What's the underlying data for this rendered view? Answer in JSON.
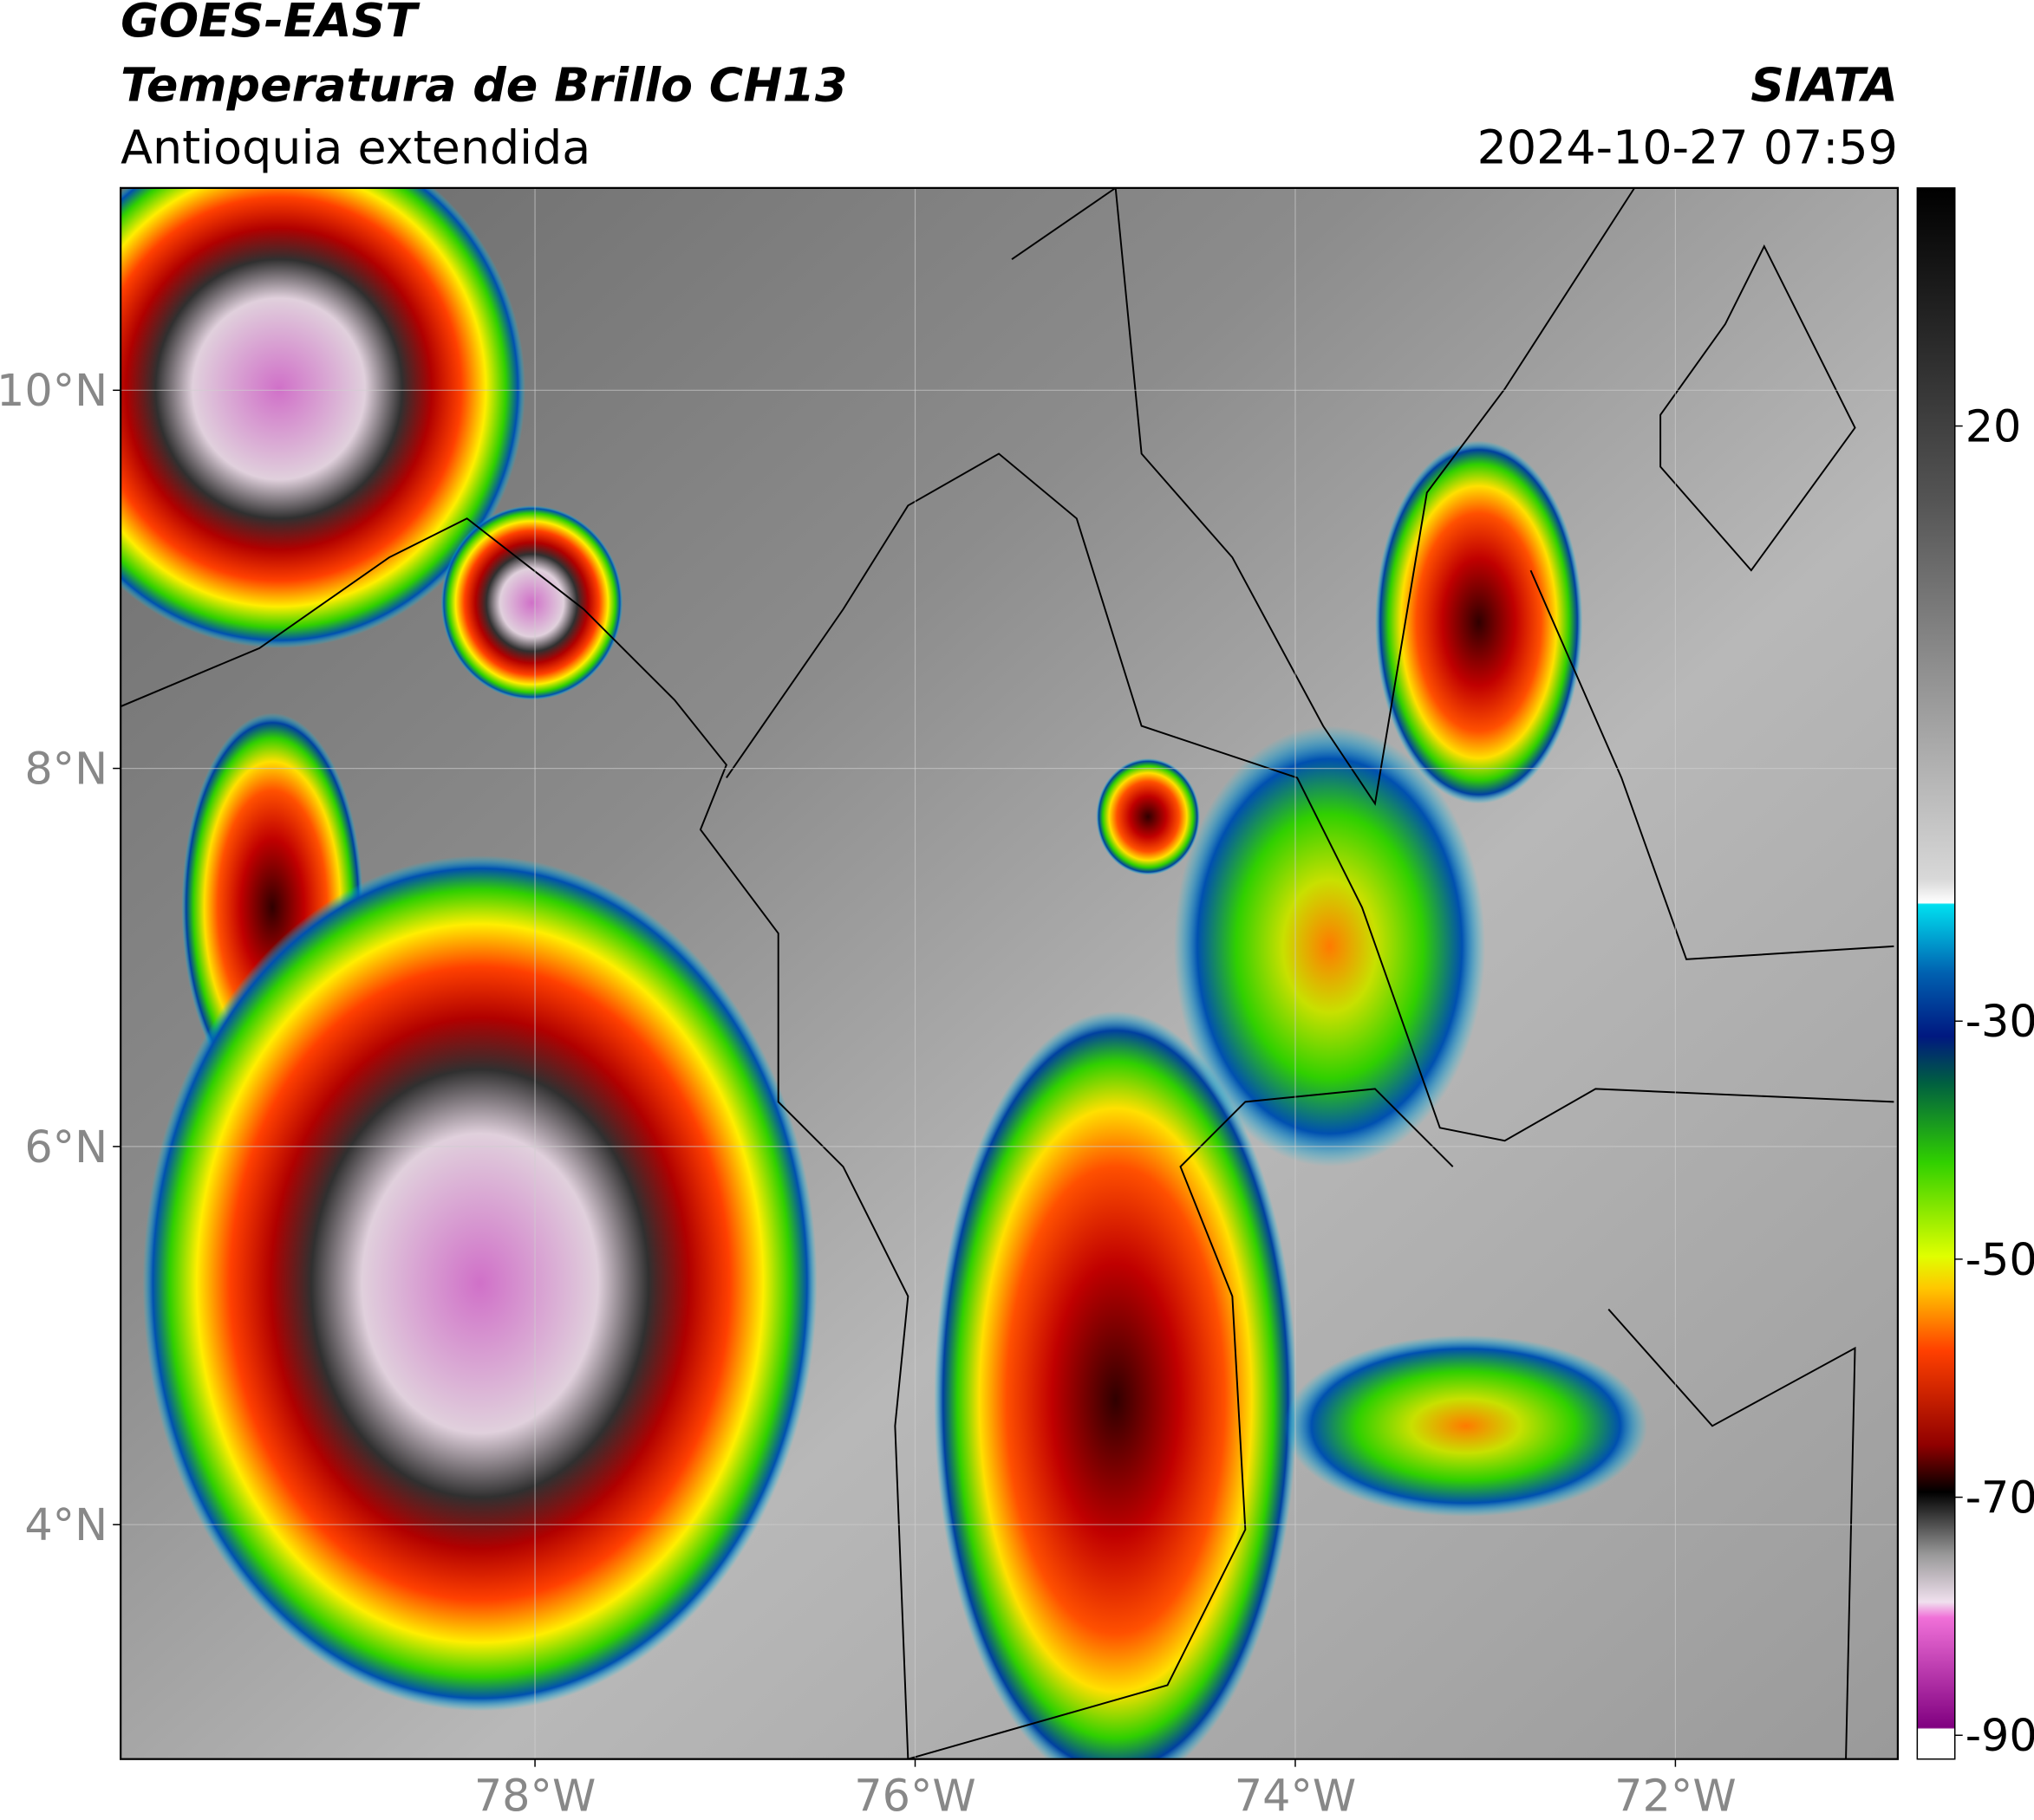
{
  "header": {
    "satellite": "GOES-EAST",
    "product": "Temperatura de Brillo CH13",
    "region": "Antioquia extendida",
    "source": "SIATA",
    "datetime": "2024-10-27 07:59"
  },
  "map": {
    "xlim": [
      -80.18,
      -70.83
    ],
    "ylim": [
      2.76,
      11.07
    ],
    "xticks": [
      {
        "value": -78,
        "label": "78°W"
      },
      {
        "value": -76,
        "label": "76°W"
      },
      {
        "value": -74,
        "label": "74°W"
      },
      {
        "value": -72,
        "label": "72°W"
      }
    ],
    "yticks": [
      {
        "value": 10,
        "label": "10°N"
      },
      {
        "value": 8,
        "label": "8°N"
      },
      {
        "value": 6,
        "label": "6°N"
      },
      {
        "value": 4,
        "label": "4°N"
      }
    ],
    "grid": true
  },
  "colorbar": {
    "ylim": [
      -92,
      40
    ],
    "yticks": [
      20,
      -30,
      -50,
      -70,
      -90
    ]
  }
}
